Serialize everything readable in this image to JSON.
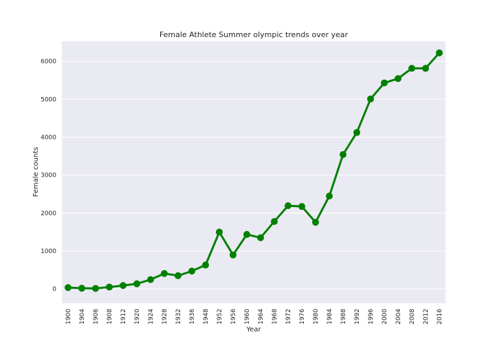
{
  "chart_data": {
    "type": "line",
    "title": "Female Athlete Summer olympic trends over year",
    "xlabel": "Year",
    "ylabel": "Female counts",
    "categories": [
      "1900",
      "1904",
      "1906",
      "1908",
      "1912",
      "1920",
      "1924",
      "1928",
      "1932",
      "1936",
      "1948",
      "1952",
      "1956",
      "1960",
      "1964",
      "1968",
      "1972",
      "1976",
      "1980",
      "1984",
      "1988",
      "1992",
      "1996",
      "2000",
      "2004",
      "2008",
      "2012",
      "2016"
    ],
    "series": [
      {
        "values": [
          33,
          16,
          11,
          47,
          87,
          134,
          244,
          404,
          347,
          468,
          628,
          1497,
          893,
          1435,
          1348,
          1777,
          2193,
          2172,
          1756,
          2447,
          3543,
          4124,
          5008,
          5431,
          5546,
          5816,
          5815,
          6223
        ],
        "color": "#008000"
      }
    ],
    "yticks": [
      0,
      1000,
      2000,
      3000,
      4000,
      5000,
      6000
    ],
    "ylim": [
      -380,
      6530
    ],
    "grid": true,
    "background": "#eaeaf2"
  }
}
